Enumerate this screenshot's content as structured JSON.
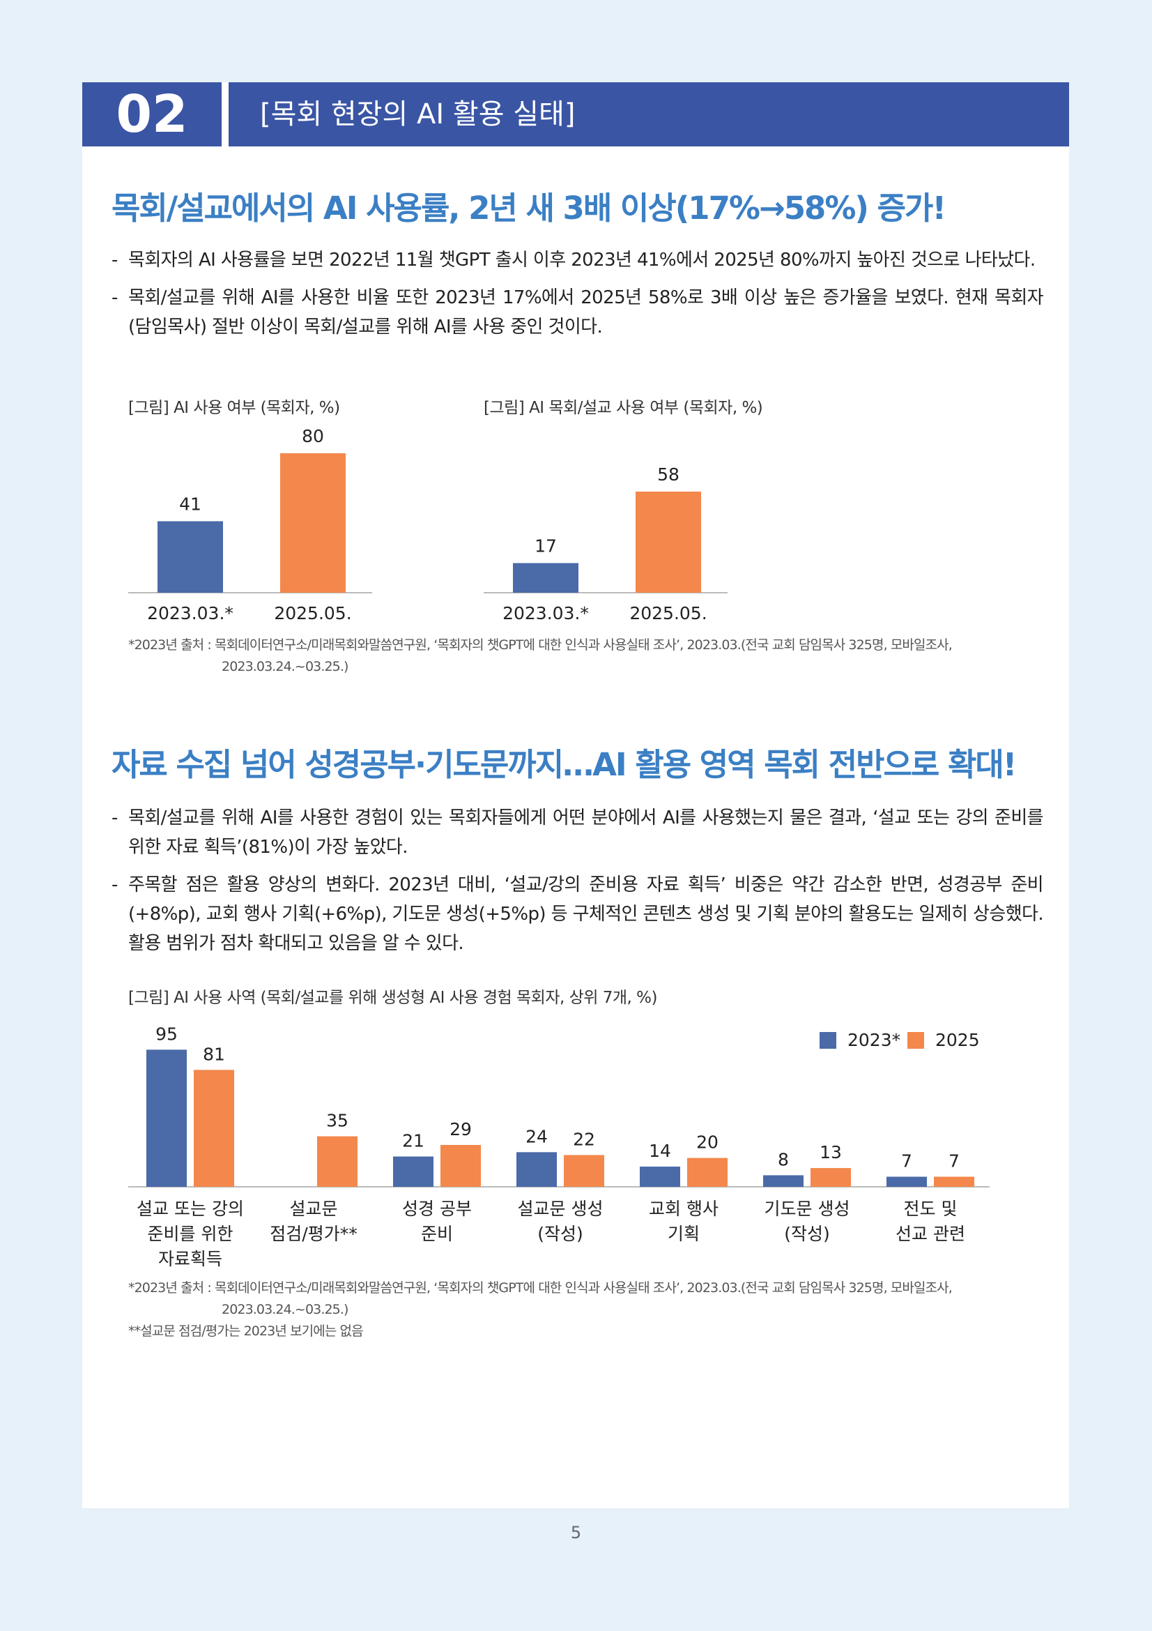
{
  "header": {
    "number": "02",
    "title": "[목회 현장의 AI 활용 실태]"
  },
  "sections": [
    {
      "heading": "목회/설교에서의 AI 사용률, 2년 새 3배 이상(17%→58%) 증가!",
      "bullets": [
        "목회자의 AI 사용률을 보면 2022년 11월 챗GPT 출시 이후 2023년 41%에서 2025년 80%까지 높아진 것으로 나타났다.",
        "목회/설교를 위해 AI를 사용한 비율 또한 2023년 17%에서 2025년 58%로 3배 이상 높은 증가율을 보였다. 현재 목회자(담임목사) 절반 이상이 목회/설교를 위해 AI를 사용 중인 것이다."
      ],
      "footnotes": [
        "*2023년 출처 : 목회데이터연구소/미래목회와말씀연구원, ‘목회자의 챗GPT에 대한 인식과 사용실태 조사’, 2023.03.(전국 교회 담임목사 325명, 모바일조사, 2023.03.24.~03.25.)"
      ]
    },
    {
      "heading": "자료 수집 넘어 성경공부·기도문까지…AI 활용 영역 목회 전반으로 확대!",
      "bullets": [
        "목회/설교를 위해 AI를 사용한 경험이 있는 목회자들에게 어떤 분야에서 AI를 사용했는지 물은 결과, ‘설교 또는 강의 준비를 위한 자료 획득’(81%)이 가장 높았다.",
        "주목할 점은 활용 양상의 변화다. 2023년 대비, ‘설교/강의 준비용 자료 획득’ 비중은 약간 감소한 반면, 성경공부 준비(+8%p), 교회 행사 기획(+6%p), 기도문 생성(+5%p) 등 구체적인 콘텐츠 생성 및 기획 분야의 활용도는 일제히 상승했다. 활용 범위가 점차 확대되고 있음을 알 수 있다."
      ],
      "footnotes": [
        "*2023년 출처 : 목회데이터연구소/미래목회와말씀연구원, ‘목회자의 챗GPT에 대한 인식과 사용실태 조사’, 2023.03.(전국 교회 담임목사 325명, 모바일조사, 2023.03.24.~03.25.)",
        "**설교문 점검/평가는 2023년 보기에는 없음"
      ]
    }
  ],
  "chart_data": [
    {
      "type": "bar",
      "title": "[그림] AI 사용 여부 (목회자, %)",
      "categories": [
        "2023.03.*",
        "2025.05."
      ],
      "values": [
        41,
        80
      ],
      "colors": [
        "#4a6aa8",
        "#f4874b"
      ]
    },
    {
      "type": "bar",
      "title": "[그림] AI 목회/설교 사용 여부 (목회자, %)",
      "categories": [
        "2023.03.*",
        "2025.05."
      ],
      "values": [
        17,
        58
      ],
      "colors": [
        "#4a6aa8",
        "#f4874b"
      ]
    },
    {
      "type": "grouped_bar",
      "title": "[그림] AI 사용 사역 (목회/설교를 위해 생성형 AI 사용 경험 목회자, 상위 7개, %)",
      "categories": [
        [
          "설교 또는 강의",
          "준비를 위한",
          "자료획득"
        ],
        [
          "설교문",
          "점검/평가**"
        ],
        [
          "성경 공부",
          "준비"
        ],
        [
          "설교문 생성",
          "(작성)"
        ],
        [
          "교회 행사",
          "기획"
        ],
        [
          "기도문 생성",
          "(작성)"
        ],
        [
          "전도 및",
          "선교 관련"
        ]
      ],
      "series": [
        {
          "name": "2023*",
          "color": "#4a6aa8",
          "values": [
            95,
            null,
            21,
            24,
            14,
            8,
            7
          ]
        },
        {
          "name": "2025",
          "color": "#f4874b",
          "values": [
            81,
            35,
            29,
            22,
            20,
            13,
            7
          ]
        }
      ]
    }
  ],
  "page_number": "5"
}
